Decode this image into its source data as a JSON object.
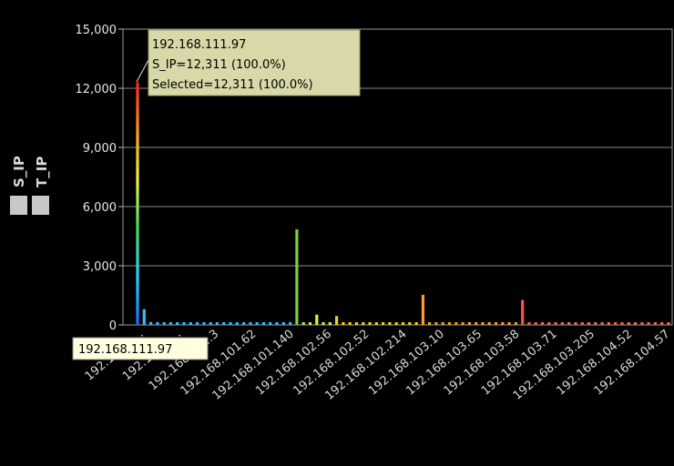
{
  "chart_data": {
    "type": "bar",
    "ylim": [
      0,
      15000
    ],
    "yticks": [
      0,
      3000,
      6000,
      9000,
      12000,
      15000
    ],
    "ytick_labels": [
      "0",
      "3,000",
      "6,000",
      "9,000",
      "12,000",
      "15,000"
    ],
    "grid": true,
    "legend": {
      "position": "left",
      "entries": [
        "S_IP",
        "T_IP"
      ]
    },
    "xtick_labels": [
      "192.168.1...",
      "192.168.1...",
      "192.168.101.3",
      "192.168.101.62",
      "192.168.101.140",
      "192.168.102.56",
      "192.168.102.52",
      "192.168.102.214",
      "192.168.103.10",
      "192.168.103.65",
      "192.168.103.58",
      "192.168.103.71",
      "192.168.103.205",
      "192.168.104.52",
      "192.168.104.57"
    ],
    "bars": [
      {
        "value": 12311,
        "color": "#ff3030"
      },
      {
        "value": 800,
        "color": "#39b8ff"
      },
      {
        "value": 150,
        "color": "#39b8ff"
      },
      {
        "value": 130,
        "color": "#39b8ff"
      },
      {
        "value": 130,
        "color": "#39b8ff"
      },
      {
        "value": 130,
        "color": "#39b8ff"
      },
      {
        "value": 130,
        "color": "#39b8ff"
      },
      {
        "value": 130,
        "color": "#39b8ff"
      },
      {
        "value": 130,
        "color": "#39b8ff"
      },
      {
        "value": 130,
        "color": "#39b8ff"
      },
      {
        "value": 130,
        "color": "#39b8ff"
      },
      {
        "value": 130,
        "color": "#39b8ff"
      },
      {
        "value": 130,
        "color": "#39b8ff"
      },
      {
        "value": 130,
        "color": "#39b8ff"
      },
      {
        "value": 130,
        "color": "#39b8ff"
      },
      {
        "value": 130,
        "color": "#39b8ff"
      },
      {
        "value": 130,
        "color": "#39b8ff"
      },
      {
        "value": 130,
        "color": "#39b8ff"
      },
      {
        "value": 130,
        "color": "#39b8ff"
      },
      {
        "value": 130,
        "color": "#39b8ff"
      },
      {
        "value": 130,
        "color": "#39b8ff"
      },
      {
        "value": 130,
        "color": "#39b8ff"
      },
      {
        "value": 130,
        "color": "#39b8ff"
      },
      {
        "value": 130,
        "color": "#39b8ff"
      },
      {
        "value": 4850,
        "color": "#7cd23c"
      },
      {
        "value": 130,
        "color": "#c8e040"
      },
      {
        "value": 130,
        "color": "#c8e040"
      },
      {
        "value": 520,
        "color": "#e8e840"
      },
      {
        "value": 130,
        "color": "#e8e840"
      },
      {
        "value": 130,
        "color": "#e8e840"
      },
      {
        "value": 450,
        "color": "#f0d020"
      },
      {
        "value": 130,
        "color": "#f0d020"
      },
      {
        "value": 130,
        "color": "#f0d020"
      },
      {
        "value": 130,
        "color": "#f0d020"
      },
      {
        "value": 130,
        "color": "#f0d020"
      },
      {
        "value": 130,
        "color": "#f0d020"
      },
      {
        "value": 130,
        "color": "#f0d020"
      },
      {
        "value": 130,
        "color": "#f0d020"
      },
      {
        "value": 130,
        "color": "#f0d020"
      },
      {
        "value": 130,
        "color": "#f0d020"
      },
      {
        "value": 130,
        "color": "#f0d020"
      },
      {
        "value": 130,
        "color": "#f0d020"
      },
      {
        "value": 130,
        "color": "#f0d020"
      },
      {
        "value": 1530,
        "color": "#ff9a30"
      },
      {
        "value": 130,
        "color": "#f0a030"
      },
      {
        "value": 130,
        "color": "#f0a030"
      },
      {
        "value": 130,
        "color": "#f0a030"
      },
      {
        "value": 130,
        "color": "#f0a030"
      },
      {
        "value": 130,
        "color": "#f0a030"
      },
      {
        "value": 130,
        "color": "#f0a030"
      },
      {
        "value": 130,
        "color": "#f0a030"
      },
      {
        "value": 130,
        "color": "#f0a030"
      },
      {
        "value": 130,
        "color": "#f0a030"
      },
      {
        "value": 130,
        "color": "#f0a030"
      },
      {
        "value": 130,
        "color": "#f0a030"
      },
      {
        "value": 130,
        "color": "#f0a030"
      },
      {
        "value": 130,
        "color": "#f0a030"
      },
      {
        "value": 130,
        "color": "#f0a030"
      },
      {
        "value": 1270,
        "color": "#ff5050"
      },
      {
        "value": 130,
        "color": "#e87050"
      },
      {
        "value": 130,
        "color": "#e87050"
      },
      {
        "value": 130,
        "color": "#e87050"
      },
      {
        "value": 130,
        "color": "#e87050"
      },
      {
        "value": 130,
        "color": "#e87050"
      },
      {
        "value": 130,
        "color": "#e87050"
      },
      {
        "value": 130,
        "color": "#e87050"
      },
      {
        "value": 130,
        "color": "#e87050"
      },
      {
        "value": 130,
        "color": "#e87050"
      },
      {
        "value": 130,
        "color": "#e87050"
      },
      {
        "value": 130,
        "color": "#e87050"
      },
      {
        "value": 130,
        "color": "#e87050"
      },
      {
        "value": 130,
        "color": "#e87050"
      },
      {
        "value": 130,
        "color": "#e87050"
      },
      {
        "value": 130,
        "color": "#e87050"
      },
      {
        "value": 130,
        "color": "#e87050"
      },
      {
        "value": 130,
        "color": "#e87050"
      },
      {
        "value": 130,
        "color": "#e87050"
      },
      {
        "value": 130,
        "color": "#e87050"
      },
      {
        "value": 130,
        "color": "#e87050"
      },
      {
        "value": 130,
        "color": "#e87050"
      },
      {
        "value": 130,
        "color": "#e87050"
      }
    ],
    "tooltip": [
      "192.168.111.97",
      "S_IP=12,311 (100.0%)",
      "Selected=12,311 (100.0%)"
    ],
    "hover_label": "192.168.111.97"
  },
  "colors": {
    "background": "#000000",
    "grid": "#8a8a8a",
    "tooltip_bg": "#d8d8a8",
    "hover_bg": "#ffffe0",
    "legend_box": "#c8c8c8"
  }
}
